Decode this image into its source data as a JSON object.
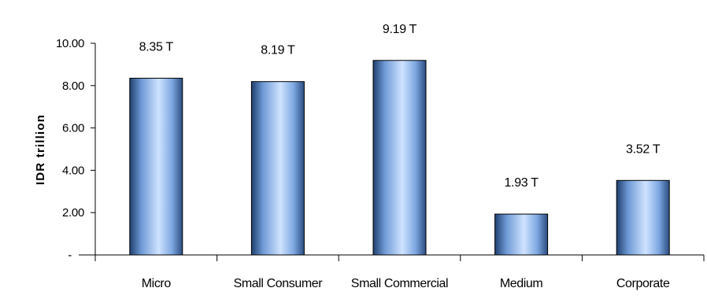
{
  "chart_data": {
    "type": "bar",
    "categories": [
      "Micro",
      "Small Consumer",
      "Small Commercial",
      "Medium",
      "Corporate"
    ],
    "values": [
      8.35,
      8.19,
      9.19,
      1.93,
      3.52
    ],
    "data_labels": [
      "8.35 T",
      "8.19 T",
      "9.19 T",
      "1.93 T",
      "3.52 T"
    ],
    "ylabel": "IDR trillion",
    "ylim": [
      0,
      10
    ],
    "yticks": [
      0,
      2,
      4,
      6,
      8,
      10
    ],
    "ytick_labels": [
      "-",
      "2.00",
      "4.00",
      "6.00",
      "8.00",
      "10.00"
    ],
    "grid": false,
    "legend": "none",
    "colors": {
      "bar_light": "#cfe3ff",
      "bar_mid": "#8fb8f0",
      "bar_dark": "#1f3f6e",
      "bar_edge": "#000000",
      "axis": "#000000"
    }
  }
}
